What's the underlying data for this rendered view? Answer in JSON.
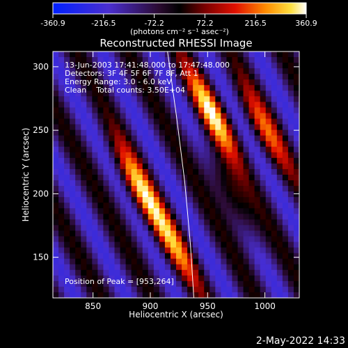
{
  "chart_data": {
    "type": "heatmap",
    "title": "Reconstructed RHESSI Image",
    "xlabel": "Heliocentric X (arcsec)",
    "ylabel": "Heliocentric Y (arcsec)",
    "xlim": [
      815,
      1030
    ],
    "ylim": [
      118,
      312
    ],
    "xticks": [
      850,
      900,
      950,
      1000
    ],
    "yticks": [
      150,
      200,
      250,
      300
    ],
    "colorbar": {
      "label": "(photons cm⁻² s⁻¹ asec⁻²)",
      "range": [
        -360.9,
        360.9
      ],
      "ticks": [
        "-360.9",
        "-216.5",
        "-72.2",
        "72.2",
        "216.5",
        "360.9"
      ]
    },
    "annotations": [
      "13-Jun-2003 17:41:48.000 to 17:47:48.000",
      "Detectors: 3F 4F 5F 6F 7F 8F, Att 1",
      "Energy Range: 3.0 - 6.0 keV",
      "Clean    Total counts: 3.50E+04"
    ],
    "peak_label": "Position of Peak = [953,264]",
    "peak": [
      953,
      264
    ],
    "limb": [
      [
        915,
        312
      ],
      [
        923,
        260
      ],
      [
        930,
        210
      ],
      [
        935,
        160
      ],
      [
        938,
        118
      ]
    ],
    "sources": [
      {
        "x": 953,
        "y": 264,
        "v": 360
      },
      {
        "x": 890,
        "y": 205,
        "v": 330
      },
      {
        "x": 920,
        "y": 160,
        "v": 260
      },
      {
        "x": 1000,
        "y": 250,
        "v": 240
      },
      {
        "x": 970,
        "y": 200,
        "v": 230
      }
    ],
    "grid": false,
    "legend": "none"
  },
  "footer": {
    "date": "2-May-2022 14:33"
  }
}
